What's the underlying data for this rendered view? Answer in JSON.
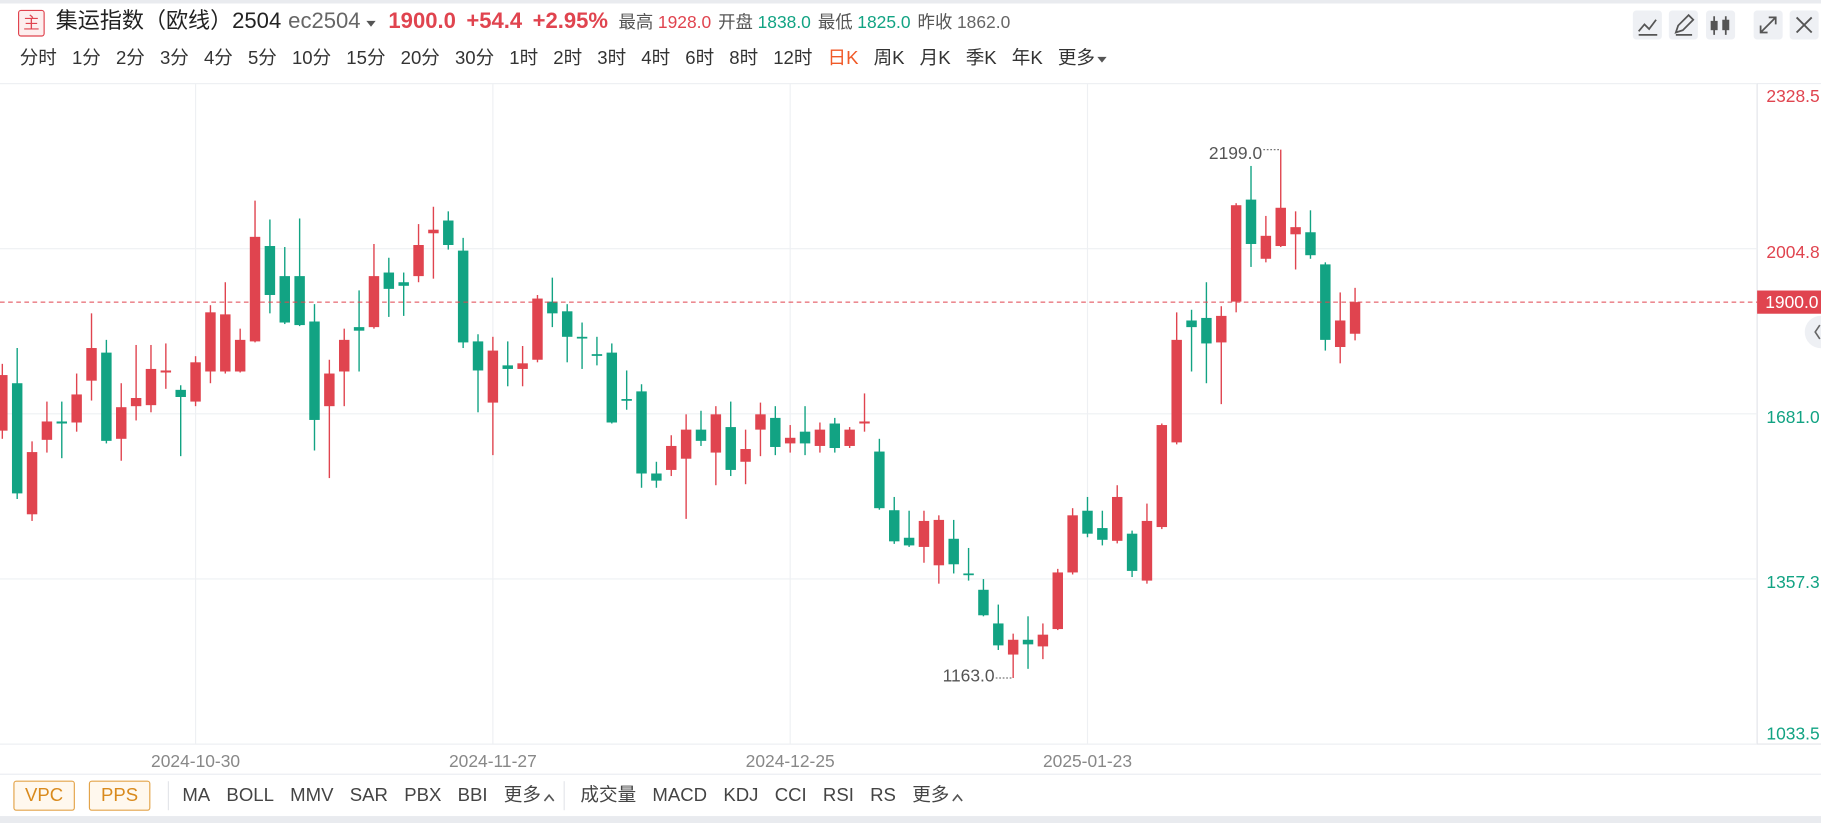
{
  "header": {
    "icon": "主",
    "title": "集运指数（欧线）2504",
    "code": "ec2504",
    "price": "1900.0",
    "change": "+54.4",
    "change_pct": "+2.95%",
    "stats": [
      {
        "label": "最高",
        "value": "1928.0",
        "color": "#e0444f"
      },
      {
        "label": "开盘",
        "value": "1838.0",
        "color": "#12a383"
      },
      {
        "label": "最低",
        "value": "1825.0",
        "color": "#12a383"
      },
      {
        "label": "昨收",
        "value": "1862.0",
        "color": "#666666"
      }
    ]
  },
  "periods": [
    "分时",
    "1分",
    "2分",
    "3分",
    "4分",
    "5分",
    "10分",
    "15分",
    "20分",
    "30分",
    "1时",
    "2时",
    "3时",
    "4时",
    "6时",
    "8时",
    "12时",
    "日K",
    "周K",
    "月K",
    "季K",
    "年K",
    "更多"
  ],
  "active_period": 17,
  "indicators": {
    "buttons": [
      "VPC",
      "PPS"
    ],
    "main": [
      "MA",
      "BOLL",
      "MMV",
      "SAR",
      "PBX",
      "BBI",
      "更多"
    ],
    "sub": [
      "成交量",
      "MACD",
      "KDJ",
      "CCI",
      "RSI",
      "RS",
      "更多"
    ]
  },
  "chart_data": {
    "type": "candlestick",
    "categories": [
      null,
      null,
      null,
      null,
      null,
      null,
      null,
      null,
      null,
      null,
      null,
      null,
      null,
      "2024-10-30",
      null,
      null,
      null,
      null,
      null,
      null,
      null,
      null,
      null,
      null,
      null,
      null,
      null,
      null,
      null,
      null,
      null,
      null,
      null,
      "2024-11-27",
      null,
      null,
      null,
      null,
      null,
      null,
      null,
      null,
      null,
      null,
      null,
      null,
      null,
      null,
      null,
      null,
      null,
      null,
      null,
      "2024-12-25",
      null,
      null,
      null,
      null,
      null,
      null,
      null,
      null,
      null,
      null,
      null,
      null,
      null,
      null,
      null,
      null,
      null,
      null,
      null,
      "2025-01-23",
      null,
      null,
      null,
      null,
      null,
      null,
      null,
      null,
      null,
      null,
      null,
      null,
      null,
      null,
      null,
      null,
      null,
      null
    ],
    "open": [
      1648,
      1741,
      1484,
      1630,
      1666,
      1664,
      1746,
      1801,
      1632,
      1696,
      1698,
      1762,
      1728,
      1705,
      1764,
      1764,
      1764,
      1823,
      2010,
      1951,
      1951,
      1862,
      1696,
      1764,
      1851,
      1851,
      1958,
      1939,
      1951,
      2035,
      2060,
      2001,
      1823,
      1703,
      1776,
      1769,
      1787,
      1901,
      1882,
      1832,
      1798,
      1801,
      1710,
      1725,
      1564,
      1571,
      1593,
      1650,
      1605,
      1655,
      1587,
      1650,
      1673,
      1623,
      1646,
      1618,
      1662,
      1618,
      1662,
      1607,
      1492,
      1438,
      1420,
      1384,
      1436,
      1368,
      1336,
      1270,
      1209,
      1238,
      1225,
      1259,
      1370,
      1491,
      1457,
      1432,
      1446,
      1354,
      1459,
      1625,
      1864,
      1869,
      1821,
      1901,
      2101,
      1985,
      2010,
      2033,
      2037,
      1974,
      1812,
      1838
    ],
    "high": [
      1779,
      1810,
      1627,
      1705,
      1705,
      1760,
      1878,
      1826,
      1741,
      1816,
      1816,
      1819,
      1737,
      1794,
      1894,
      1939,
      1848,
      2099,
      2062,
      2008,
      2064,
      1896,
      1787,
      1848,
      1923,
      2014,
      1987,
      1958,
      2053,
      2087,
      2078,
      2026,
      1837,
      1832,
      1823,
      1814,
      1914,
      1948,
      1896,
      1860,
      1832,
      1819,
      1766,
      1739,
      1587,
      1639,
      1680,
      1687,
      1696,
      1705,
      1650,
      1703,
      1696,
      1659,
      1696,
      1664,
      1673,
      1655,
      1721,
      1632,
      1518,
      1491,
      1491,
      1482,
      1473,
      1418,
      1357,
      1307,
      1250,
      1284,
      1270,
      1377,
      1496,
      1518,
      1491,
      1541,
      1452,
      1505,
      1662,
      1880,
      1885,
      1939,
      1892,
      2094,
      2167,
      2069,
      2199,
      2078,
      2080,
      1978,
      1919,
      1928
    ],
    "low": [
      1632,
      1514,
      1471,
      1605,
      1594,
      1646,
      1707,
      1623,
      1589,
      1668,
      1684,
      1730,
      1598,
      1696,
      1741,
      1760,
      1762,
      1821,
      1878,
      1857,
      1853,
      1609,
      1555,
      1696,
      1764,
      1848,
      1871,
      1873,
      1939,
      1946,
      2003,
      1810,
      1684,
      1600,
      1735,
      1735,
      1782,
      1851,
      1782,
      1769,
      1776,
      1662,
      1689,
      1536,
      1536,
      1559,
      1475,
      1618,
      1541,
      1559,
      1543,
      1598,
      1600,
      1605,
      1600,
      1605,
      1605,
      1614,
      1646,
      1493,
      1426,
      1420,
      1389,
      1348,
      1368,
      1354,
      1284,
      1218,
      1163,
      1181,
      1200,
      1257,
      1366,
      1439,
      1423,
      1427,
      1361,
      1348,
      1455,
      1621,
      1764,
      1741,
      1700,
      1880,
      1969,
      1978,
      2008,
      1964,
      1985,
      1805,
      1780,
      1825
    ],
    "close": [
      1757,
      1525,
      1606,
      1666,
      1662,
      1719,
      1810,
      1628,
      1694,
      1712,
      1769,
      1766,
      1714,
      1782,
      1880,
      1876,
      1826,
      2028,
      1914,
      1860,
      1855,
      1669,
      1760,
      1826,
      1844,
      1951,
      1926,
      1932,
      2012,
      2042,
      2012,
      1821,
      1766,
      1805,
      1769,
      1780,
      1907,
      1878,
      1832,
      1830,
      1796,
      1664,
      1707,
      1564,
      1550,
      1618,
      1650,
      1628,
      1680,
      1571,
      1612,
      1680,
      1616,
      1634,
      1623,
      1650,
      1614,
      1650,
      1666,
      1496,
      1431,
      1423,
      1471,
      1473,
      1386,
      1366,
      1286,
      1227,
      1238,
      1229,
      1248,
      1370,
      1482,
      1446,
      1434,
      1518,
      1373,
      1471,
      1659,
      1826,
      1851,
      1819,
      1873,
      2090,
      2014,
      2030,
      2085,
      2047,
      1992,
      1826,
      1864,
      1900
    ],
    "up_color": "#e0444f",
    "down_color": "#12a383",
    "ylim": [
      1033.5,
      2328.5
    ],
    "yticks": [
      1033.5,
      1357.3,
      {
        "value": 1681,
        "label": "1681.0"
      },
      2004.8,
      2328.5
    ],
    "grid": true,
    "high_label": "2199.0",
    "low_label": "1163.0",
    "last_price_label": "1900.0"
  }
}
